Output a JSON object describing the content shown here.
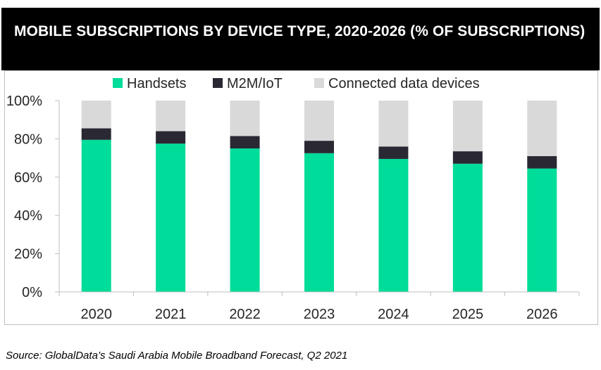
{
  "header": {
    "title": "MOBILE SUBSCRIPTIONS BY DEVICE TYPE, 2020-2026 (% OF SUBSCRIPTIONS)"
  },
  "source": "Source: GlobalData’s Saudi Arabia Mobile Broadband Forecast, Q2 2021",
  "colors": {
    "handsets": "#00dc99",
    "m2m": "#2a2833",
    "connected": "#d9d9d9",
    "axis": "#bfbfbf",
    "title_bg": "#000000"
  },
  "chart_data": {
    "type": "bar",
    "stacked": true,
    "categories": [
      "2020",
      "2021",
      "2022",
      "2023",
      "2024",
      "2025",
      "2026"
    ],
    "series": [
      {
        "name": "Handsets",
        "color": "#00dc99",
        "values": [
          79.5,
          77.5,
          75,
          72.5,
          69.5,
          67,
          64.5
        ]
      },
      {
        "name": "M2M/IoT",
        "color": "#2a2833",
        "values": [
          6,
          6.5,
          6.5,
          6.5,
          6.5,
          6.5,
          6.5
        ]
      },
      {
        "name": "Connected data devices",
        "color": "#d9d9d9",
        "values": [
          14.5,
          16,
          18.5,
          21,
          24,
          26.5,
          29
        ]
      }
    ],
    "yticks": [
      "0%",
      "20%",
      "40%",
      "60%",
      "80%",
      "100%"
    ],
    "ylim": [
      0,
      100
    ],
    "legend_position": "top"
  }
}
